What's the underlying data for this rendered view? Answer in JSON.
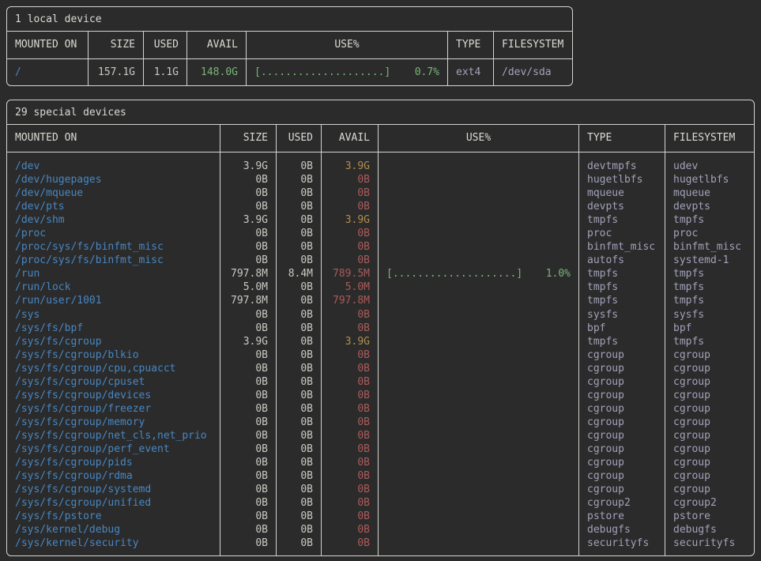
{
  "colors": {
    "background": "#2b2b2b",
    "border": "#d4d4d0",
    "mount_blue": "#4787c4",
    "avail_green": "#79b678",
    "avail_yellow": "#b28f4e",
    "avail_red": "#ad5a5a",
    "type_purple": "#a2a2ba",
    "bar_green": "#79b678"
  },
  "headers": [
    "MOUNTED ON",
    "SIZE",
    "USED",
    "AVAIL",
    "USE%",
    "TYPE",
    "FILESYSTEM"
  ],
  "local": {
    "title": "1 local device",
    "rows": [
      {
        "mount": "/",
        "size": "157.1G",
        "used": "1.1G",
        "avail": "148.0G",
        "avail_level": "green",
        "bar": "[....................]",
        "pct": "0.7%",
        "type": "ext4",
        "fs": "/dev/sda"
      }
    ]
  },
  "special": {
    "title": "29 special devices",
    "rows": [
      {
        "mount": "/dev",
        "size": "3.9G",
        "used": "0B",
        "avail": "3.9G",
        "avail_level": "yellow",
        "bar": "",
        "pct": "",
        "type": "devtmpfs",
        "fs": "udev"
      },
      {
        "mount": "/dev/hugepages",
        "size": "0B",
        "used": "0B",
        "avail": "0B",
        "avail_level": "red",
        "bar": "",
        "pct": "",
        "type": "hugetlbfs",
        "fs": "hugetlbfs"
      },
      {
        "mount": "/dev/mqueue",
        "size": "0B",
        "used": "0B",
        "avail": "0B",
        "avail_level": "red",
        "bar": "",
        "pct": "",
        "type": "mqueue",
        "fs": "mqueue"
      },
      {
        "mount": "/dev/pts",
        "size": "0B",
        "used": "0B",
        "avail": "0B",
        "avail_level": "red",
        "bar": "",
        "pct": "",
        "type": "devpts",
        "fs": "devpts"
      },
      {
        "mount": "/dev/shm",
        "size": "3.9G",
        "used": "0B",
        "avail": "3.9G",
        "avail_level": "yellow",
        "bar": "",
        "pct": "",
        "type": "tmpfs",
        "fs": "tmpfs"
      },
      {
        "mount": "/proc",
        "size": "0B",
        "used": "0B",
        "avail": "0B",
        "avail_level": "red",
        "bar": "",
        "pct": "",
        "type": "proc",
        "fs": "proc"
      },
      {
        "mount": "/proc/sys/fs/binfmt_misc",
        "size": "0B",
        "used": "0B",
        "avail": "0B",
        "avail_level": "red",
        "bar": "",
        "pct": "",
        "type": "binfmt_misc",
        "fs": "binfmt_misc"
      },
      {
        "mount": "/proc/sys/fs/binfmt_misc",
        "size": "0B",
        "used": "0B",
        "avail": "0B",
        "avail_level": "red",
        "bar": "",
        "pct": "",
        "type": "autofs",
        "fs": "systemd-1"
      },
      {
        "mount": "/run",
        "size": "797.8M",
        "used": "8.4M",
        "avail": "789.5M",
        "avail_level": "red",
        "bar": "[....................]",
        "pct": "1.0%",
        "type": "tmpfs",
        "fs": "tmpfs"
      },
      {
        "mount": "/run/lock",
        "size": "5.0M",
        "used": "0B",
        "avail": "5.0M",
        "avail_level": "red",
        "bar": "",
        "pct": "",
        "type": "tmpfs",
        "fs": "tmpfs"
      },
      {
        "mount": "/run/user/1001",
        "size": "797.8M",
        "used": "0B",
        "avail": "797.8M",
        "avail_level": "red",
        "bar": "",
        "pct": "",
        "type": "tmpfs",
        "fs": "tmpfs"
      },
      {
        "mount": "/sys",
        "size": "0B",
        "used": "0B",
        "avail": "0B",
        "avail_level": "red",
        "bar": "",
        "pct": "",
        "type": "sysfs",
        "fs": "sysfs"
      },
      {
        "mount": "/sys/fs/bpf",
        "size": "0B",
        "used": "0B",
        "avail": "0B",
        "avail_level": "red",
        "bar": "",
        "pct": "",
        "type": "bpf",
        "fs": "bpf"
      },
      {
        "mount": "/sys/fs/cgroup",
        "size": "3.9G",
        "used": "0B",
        "avail": "3.9G",
        "avail_level": "yellow",
        "bar": "",
        "pct": "",
        "type": "tmpfs",
        "fs": "tmpfs"
      },
      {
        "mount": "/sys/fs/cgroup/blkio",
        "size": "0B",
        "used": "0B",
        "avail": "0B",
        "avail_level": "red",
        "bar": "",
        "pct": "",
        "type": "cgroup",
        "fs": "cgroup"
      },
      {
        "mount": "/sys/fs/cgroup/cpu,cpuacct",
        "size": "0B",
        "used": "0B",
        "avail": "0B",
        "avail_level": "red",
        "bar": "",
        "pct": "",
        "type": "cgroup",
        "fs": "cgroup"
      },
      {
        "mount": "/sys/fs/cgroup/cpuset",
        "size": "0B",
        "used": "0B",
        "avail": "0B",
        "avail_level": "red",
        "bar": "",
        "pct": "",
        "type": "cgroup",
        "fs": "cgroup"
      },
      {
        "mount": "/sys/fs/cgroup/devices",
        "size": "0B",
        "used": "0B",
        "avail": "0B",
        "avail_level": "red",
        "bar": "",
        "pct": "",
        "type": "cgroup",
        "fs": "cgroup"
      },
      {
        "mount": "/sys/fs/cgroup/freezer",
        "size": "0B",
        "used": "0B",
        "avail": "0B",
        "avail_level": "red",
        "bar": "",
        "pct": "",
        "type": "cgroup",
        "fs": "cgroup"
      },
      {
        "mount": "/sys/fs/cgroup/memory",
        "size": "0B",
        "used": "0B",
        "avail": "0B",
        "avail_level": "red",
        "bar": "",
        "pct": "",
        "type": "cgroup",
        "fs": "cgroup"
      },
      {
        "mount": "/sys/fs/cgroup/net_cls,net_prio",
        "size": "0B",
        "used": "0B",
        "avail": "0B",
        "avail_level": "red",
        "bar": "",
        "pct": "",
        "type": "cgroup",
        "fs": "cgroup"
      },
      {
        "mount": "/sys/fs/cgroup/perf_event",
        "size": "0B",
        "used": "0B",
        "avail": "0B",
        "avail_level": "red",
        "bar": "",
        "pct": "",
        "type": "cgroup",
        "fs": "cgroup"
      },
      {
        "mount": "/sys/fs/cgroup/pids",
        "size": "0B",
        "used": "0B",
        "avail": "0B",
        "avail_level": "red",
        "bar": "",
        "pct": "",
        "type": "cgroup",
        "fs": "cgroup"
      },
      {
        "mount": "/sys/fs/cgroup/rdma",
        "size": "0B",
        "used": "0B",
        "avail": "0B",
        "avail_level": "red",
        "bar": "",
        "pct": "",
        "type": "cgroup",
        "fs": "cgroup"
      },
      {
        "mount": "/sys/fs/cgroup/systemd",
        "size": "0B",
        "used": "0B",
        "avail": "0B",
        "avail_level": "red",
        "bar": "",
        "pct": "",
        "type": "cgroup",
        "fs": "cgroup"
      },
      {
        "mount": "/sys/fs/cgroup/unified",
        "size": "0B",
        "used": "0B",
        "avail": "0B",
        "avail_level": "red",
        "bar": "",
        "pct": "",
        "type": "cgroup2",
        "fs": "cgroup2"
      },
      {
        "mount": "/sys/fs/pstore",
        "size": "0B",
        "used": "0B",
        "avail": "0B",
        "avail_level": "red",
        "bar": "",
        "pct": "",
        "type": "pstore",
        "fs": "pstore"
      },
      {
        "mount": "/sys/kernel/debug",
        "size": "0B",
        "used": "0B",
        "avail": "0B",
        "avail_level": "red",
        "bar": "",
        "pct": "",
        "type": "debugfs",
        "fs": "debugfs"
      },
      {
        "mount": "/sys/kernel/security",
        "size": "0B",
        "used": "0B",
        "avail": "0B",
        "avail_level": "red",
        "bar": "",
        "pct": "",
        "type": "securityfs",
        "fs": "securityfs"
      }
    ]
  }
}
